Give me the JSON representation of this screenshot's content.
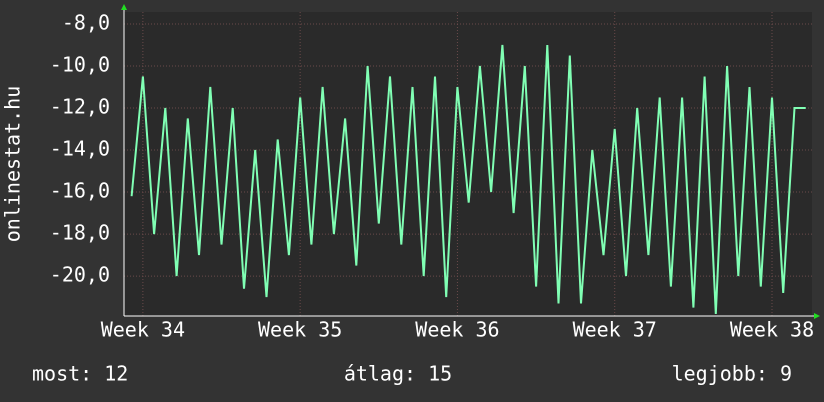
{
  "chart_data": {
    "type": "line",
    "ylabel": "onlinestat.hu",
    "x": [
      -0.5,
      0,
      0.5,
      1,
      1.5,
      2,
      2.5,
      3,
      3.5,
      4,
      4.5,
      5,
      5.5,
      6,
      6.5,
      7,
      7.5,
      8,
      8.5,
      9,
      9.5,
      10,
      10.5,
      11,
      11.5,
      12,
      12.5,
      13,
      13.5,
      14,
      14.5,
      15,
      15.5,
      16,
      16.5,
      17,
      17.5,
      18,
      18.5,
      19,
      19.5,
      20,
      20.5,
      21,
      21.5,
      22,
      22.5,
      23,
      23.5,
      24,
      24.5,
      25,
      25.5,
      26,
      26.5,
      27,
      27.5,
      28,
      28.5,
      29,
      29.5
    ],
    "series": [
      {
        "color": "#80ffb4",
        "values": [
          -16.2,
          -10.5,
          -18,
          -12,
          -20,
          -12.5,
          -19,
          -11,
          -18.5,
          -12,
          -20.6,
          -14,
          -21,
          -13.5,
          -19,
          -11.5,
          -18.5,
          -11,
          -18,
          -12.5,
          -19.5,
          -10,
          -17.5,
          -10.5,
          -18.5,
          -11,
          -20,
          -10.5,
          -21,
          -11,
          -16.5,
          -10,
          -16,
          -9,
          -17,
          -10,
          -20.5,
          -9,
          -21.3,
          -9.5,
          -21.3,
          -14,
          -19,
          -13,
          -20,
          -12,
          -19,
          -11.5,
          -20.5,
          -11.5,
          -21.5,
          -10.5,
          -21.8,
          -10,
          -20,
          -11,
          -20.5,
          -11.5,
          -20.8,
          -12,
          -12
        ]
      }
    ],
    "xlim": [
      -0.84,
      29.78
    ],
    "xticks": [
      {
        "value": 0,
        "label": "Week 34"
      },
      {
        "value": 7,
        "label": "Week 35"
      },
      {
        "value": 14,
        "label": "Week 36"
      },
      {
        "value": 21,
        "label": "Week 37"
      },
      {
        "value": 28,
        "label": "Week 38"
      }
    ],
    "ylim": [
      -21.9,
      -7.43
    ],
    "yticks": [
      {
        "value": -8,
        "label": "-8,0"
      },
      {
        "value": -10,
        "label": "-10,0"
      },
      {
        "value": -12,
        "label": "-12,0"
      },
      {
        "value": -14,
        "label": "-14,0"
      },
      {
        "value": -16,
        "label": "-16,0"
      },
      {
        "value": -18,
        "label": "-18,0"
      },
      {
        "value": -20,
        "label": "-20,0"
      }
    ],
    "grid": true,
    "stats": [
      "most: 12",
      "átlag: 15",
      "legjobb: 9"
    ]
  }
}
